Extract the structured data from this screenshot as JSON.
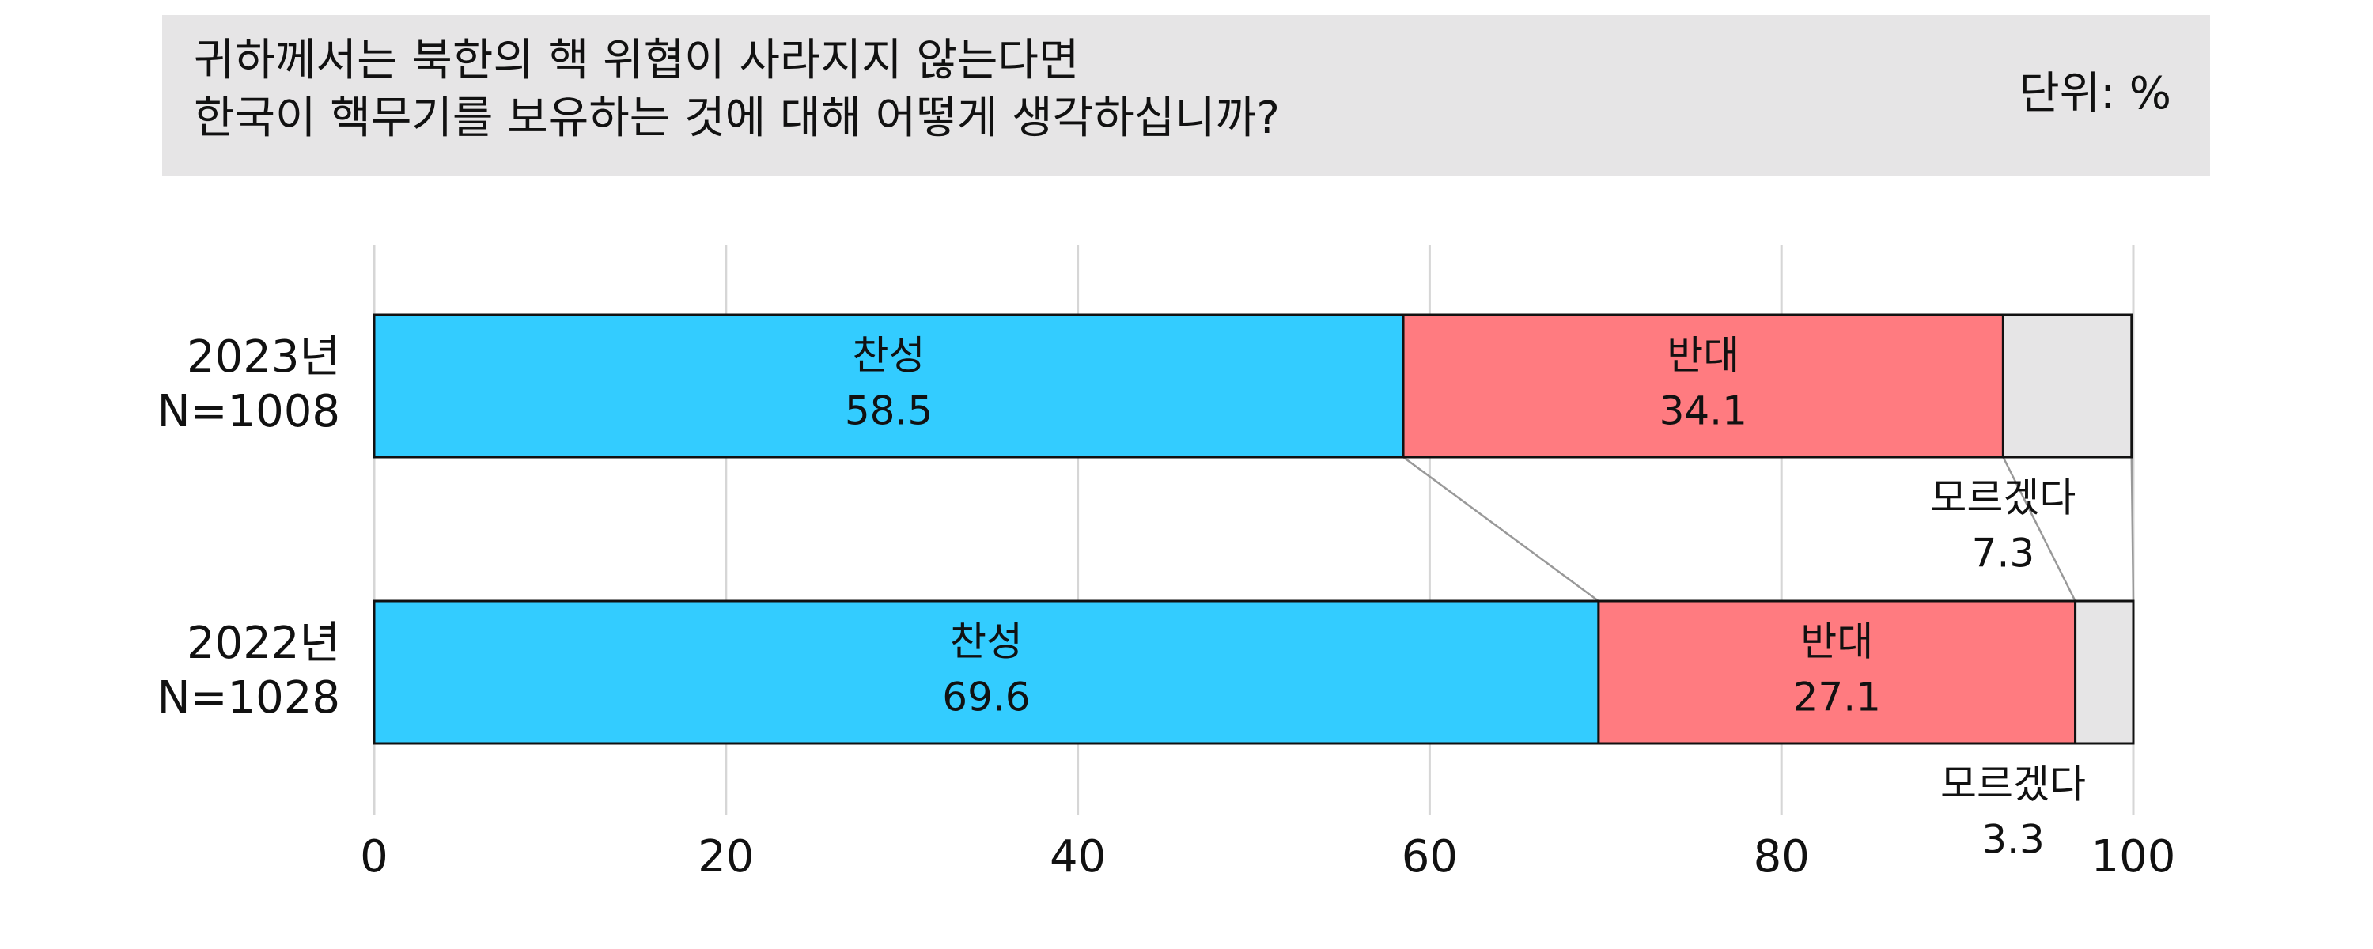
{
  "chart_data": {
    "type": "stacked-bar-horizontal",
    "title_lines": [
      "귀하께서는 북한의 핵 위협이 사라지지 않는다면",
      "한국이 핵무기를 보유하는 것에 대해 어떻게 생각하십니까?"
    ],
    "unit": "단위: %",
    "categories": [
      "2023년",
      "2022년"
    ],
    "sample_sizes": [
      "N=1008",
      "N=1028"
    ],
    "series": [
      {
        "name": "찬성",
        "color": "#33ccff",
        "values": [
          58.5,
          69.6
        ]
      },
      {
        "name": "반대",
        "color": "#ff7b80",
        "values": [
          34.1,
          27.1
        ]
      },
      {
        "name": "모르겠다",
        "color": "#e6e5e6",
        "values": [
          7.3,
          3.3
        ]
      }
    ],
    "xlim": [
      0,
      100
    ],
    "xticks": [
      0,
      20,
      40,
      60,
      80,
      100
    ],
    "grid": true
  }
}
